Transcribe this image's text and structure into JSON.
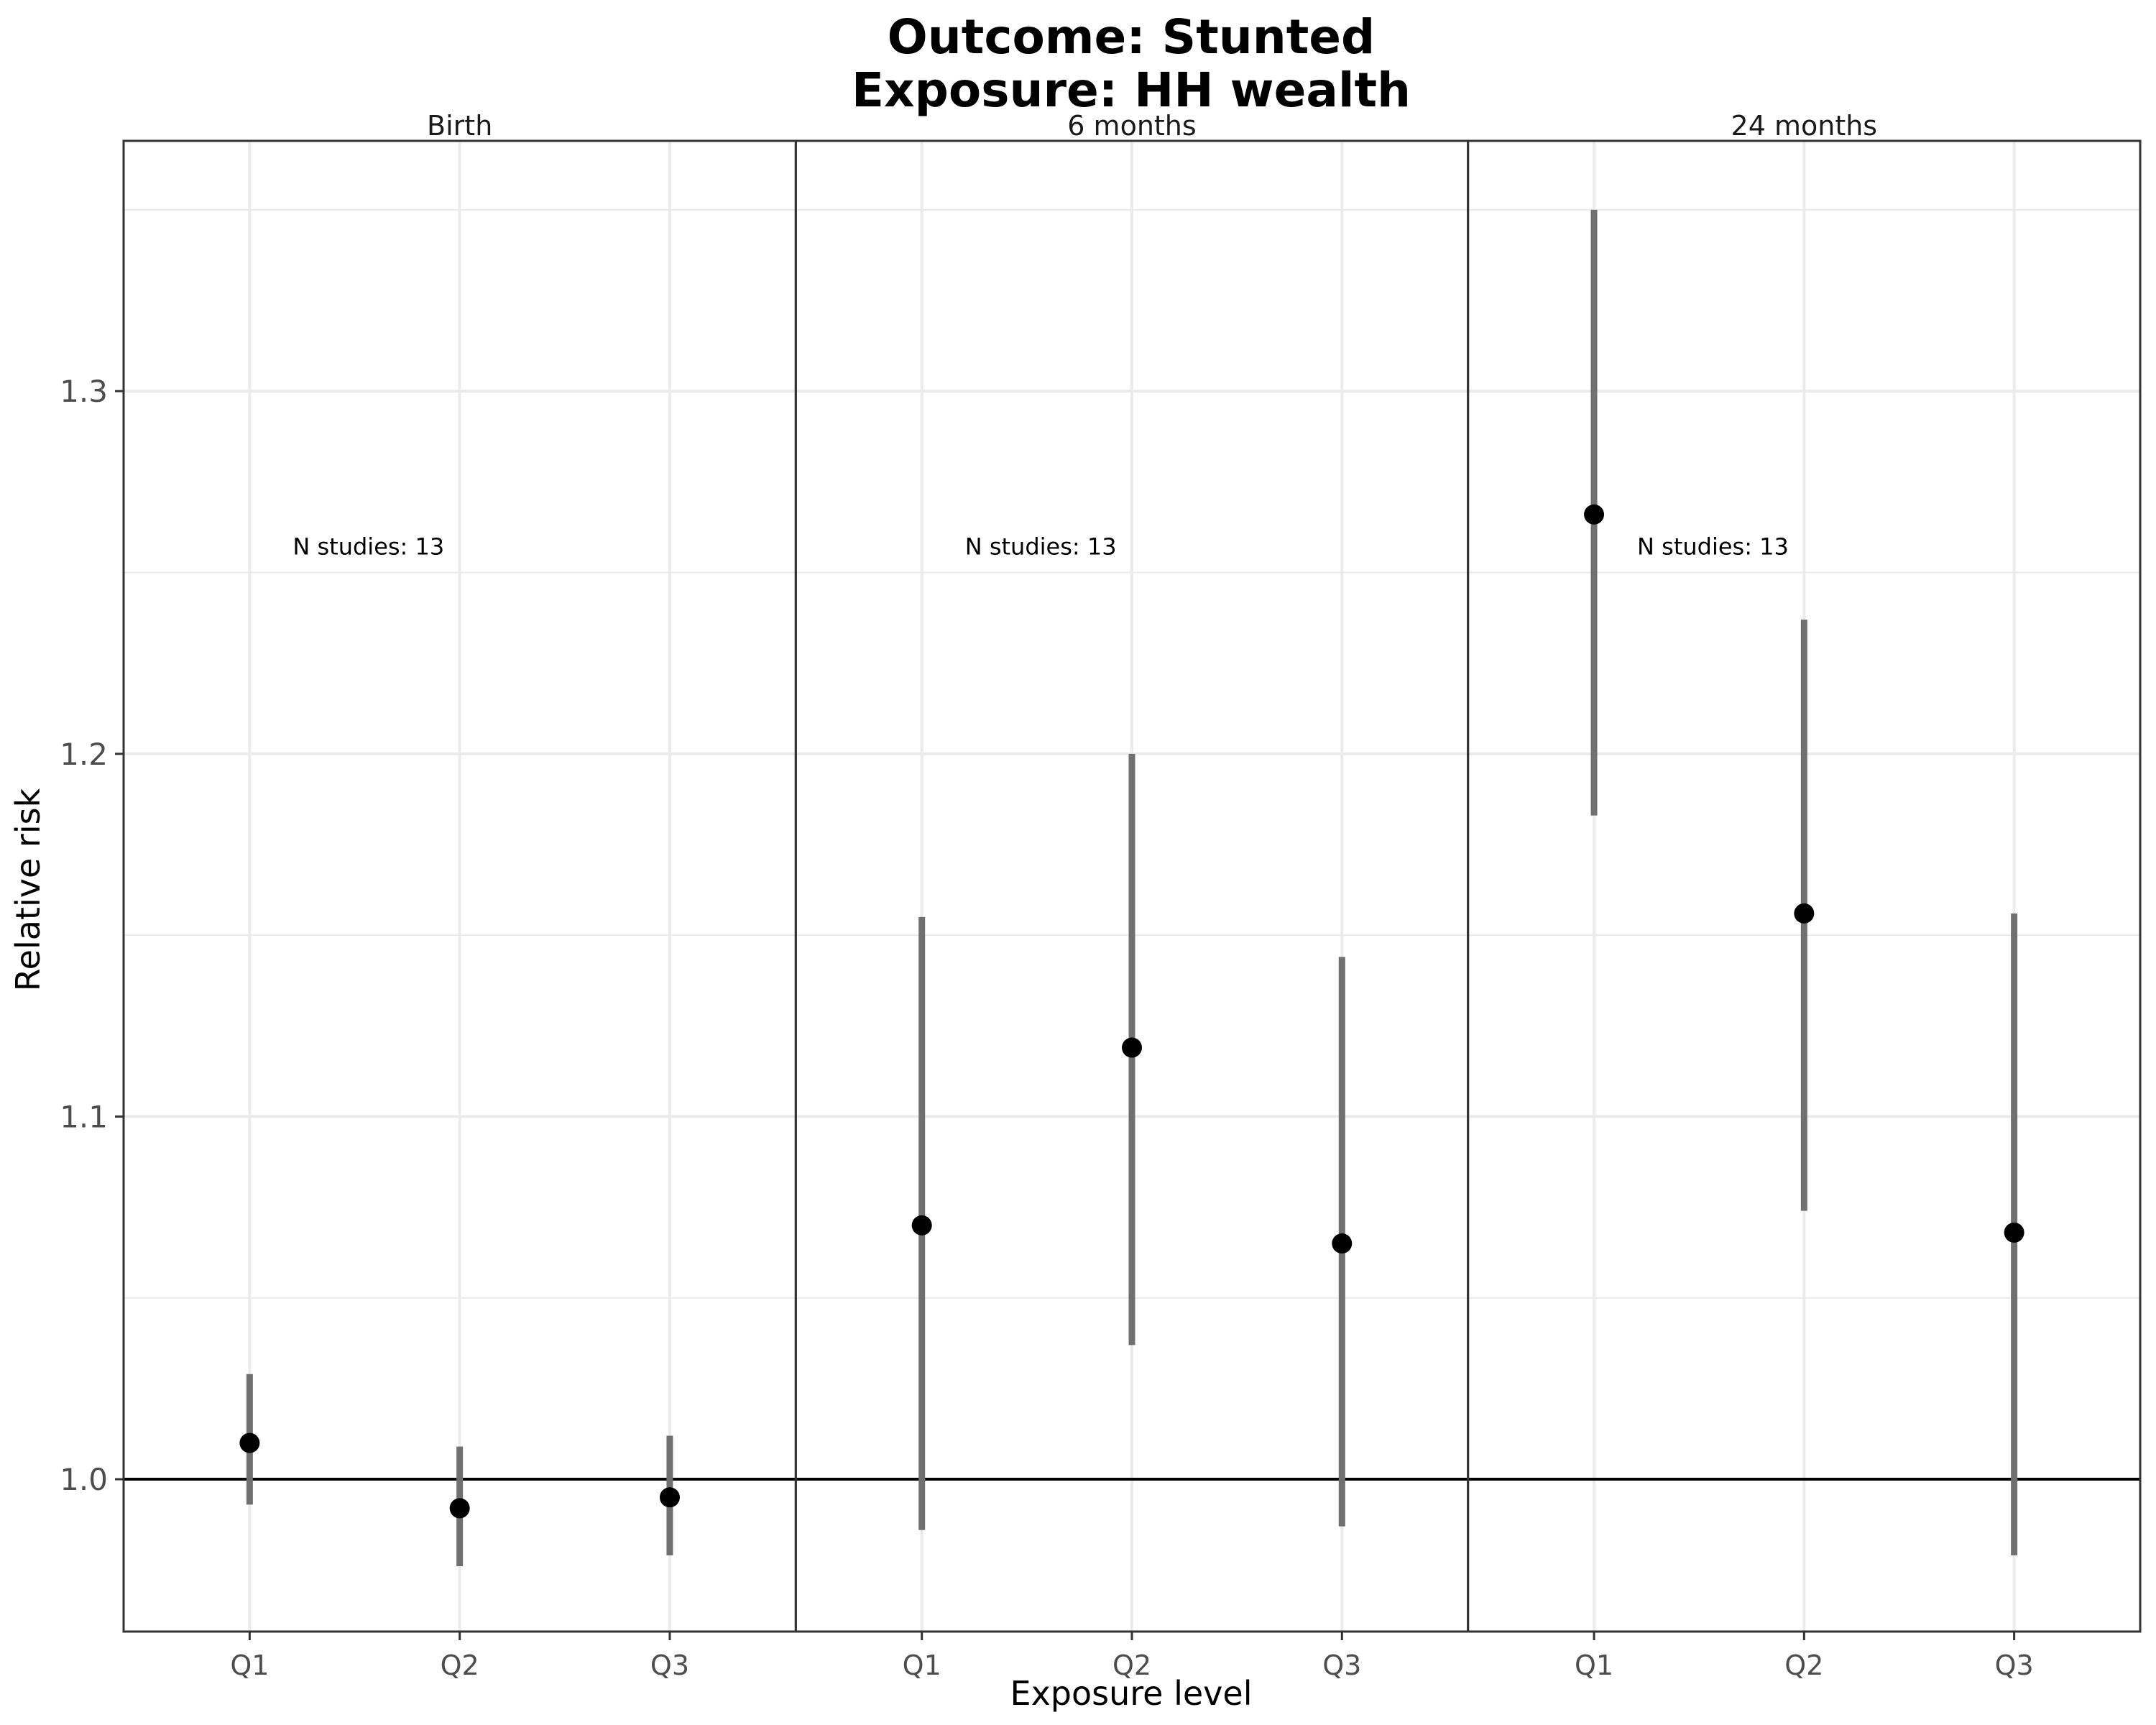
{
  "chart_data": {
    "type": "scatter",
    "title_lines": [
      "Outcome: Stunted",
      "Exposure: HH wealth"
    ],
    "xlabel": "Exposure level",
    "ylabel": "Relative risk",
    "ylim": [
      0.958,
      1.369
    ],
    "yticks": [
      1.0,
      1.1,
      1.2,
      1.3
    ],
    "ytick_labels": [
      "1.0",
      "1.1",
      "1.2",
      "1.3"
    ],
    "yminor": [
      1.05,
      1.15,
      1.25,
      1.35
    ],
    "reference_line": 1.0,
    "categories": [
      "Q1",
      "Q2",
      "Q3"
    ],
    "grid": true,
    "panels": [
      {
        "label": "Birth",
        "annotation": "N studies: 13",
        "points": [
          {
            "x": "Q1",
            "estimate": 1.01,
            "lower": 0.993,
            "upper": 1.029
          },
          {
            "x": "Q2",
            "estimate": 0.992,
            "lower": 0.976,
            "upper": 1.009
          },
          {
            "x": "Q3",
            "estimate": 0.995,
            "lower": 0.979,
            "upper": 1.012
          }
        ]
      },
      {
        "label": "6 months",
        "annotation": "N studies: 13",
        "points": [
          {
            "x": "Q1",
            "estimate": 1.07,
            "lower": 0.986,
            "upper": 1.155
          },
          {
            "x": "Q2",
            "estimate": 1.119,
            "lower": 1.037,
            "upper": 1.2
          },
          {
            "x": "Q3",
            "estimate": 1.065,
            "lower": 0.987,
            "upper": 1.144
          }
        ]
      },
      {
        "label": "24 months",
        "annotation": "N studies: 13",
        "points": [
          {
            "x": "Q1",
            "estimate": 1.266,
            "lower": 1.183,
            "upper": 1.35
          },
          {
            "x": "Q2",
            "estimate": 1.156,
            "lower": 1.074,
            "upper": 1.237
          },
          {
            "x": "Q3",
            "estimate": 1.068,
            "lower": 0.979,
            "upper": 1.156
          }
        ]
      }
    ],
    "colors": {
      "point": "#000000",
      "errorbar": "#707070",
      "grid": "#ebebeb",
      "panel_border": "#333333",
      "reference_line": "#000000"
    }
  }
}
